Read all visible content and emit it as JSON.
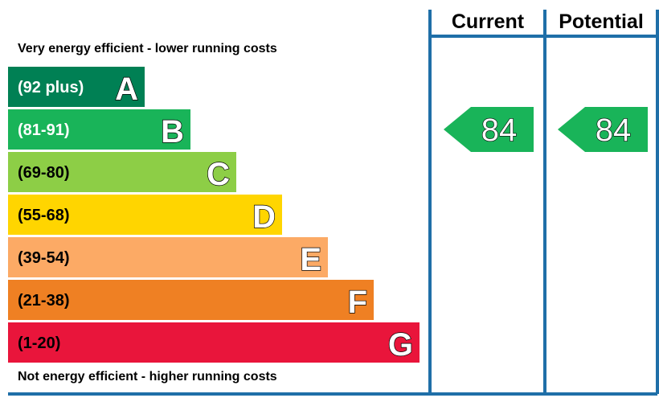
{
  "chart_data": {
    "type": "bar",
    "top_caption": "Very energy efficient - lower running costs",
    "bottom_caption": "Not energy efficient - higher running costs",
    "bands": [
      {
        "letter": "A",
        "range": "(92 plus)",
        "min": 92,
        "max": 100,
        "color": "#008054",
        "text_color": "#ffffff"
      },
      {
        "letter": "B",
        "range": "(81-91)",
        "min": 81,
        "max": 91,
        "color": "#19b459",
        "text_color": "#ffffff"
      },
      {
        "letter": "C",
        "range": "(69-80)",
        "min": 69,
        "max": 80,
        "color": "#8dce46",
        "text_color": "#000000"
      },
      {
        "letter": "D",
        "range": "(55-68)",
        "min": 55,
        "max": 68,
        "color": "#ffd500",
        "text_color": "#000000"
      },
      {
        "letter": "E",
        "range": "(39-54)",
        "min": 39,
        "max": 54,
        "color": "#fcaa65",
        "text_color": "#000000"
      },
      {
        "letter": "F",
        "range": "(21-38)",
        "min": 21,
        "max": 38,
        "color": "#ef8023",
        "text_color": "#000000"
      },
      {
        "letter": "G",
        "range": "(1-20)",
        "min": 1,
        "max": 20,
        "color": "#e9153b",
        "text_color": "#000000"
      }
    ],
    "columns": [
      {
        "header": "Current",
        "value": 84,
        "band": "B"
      },
      {
        "header": "Potential",
        "value": 84,
        "band": "B"
      }
    ],
    "frame_color": "#1f6fa8"
  }
}
